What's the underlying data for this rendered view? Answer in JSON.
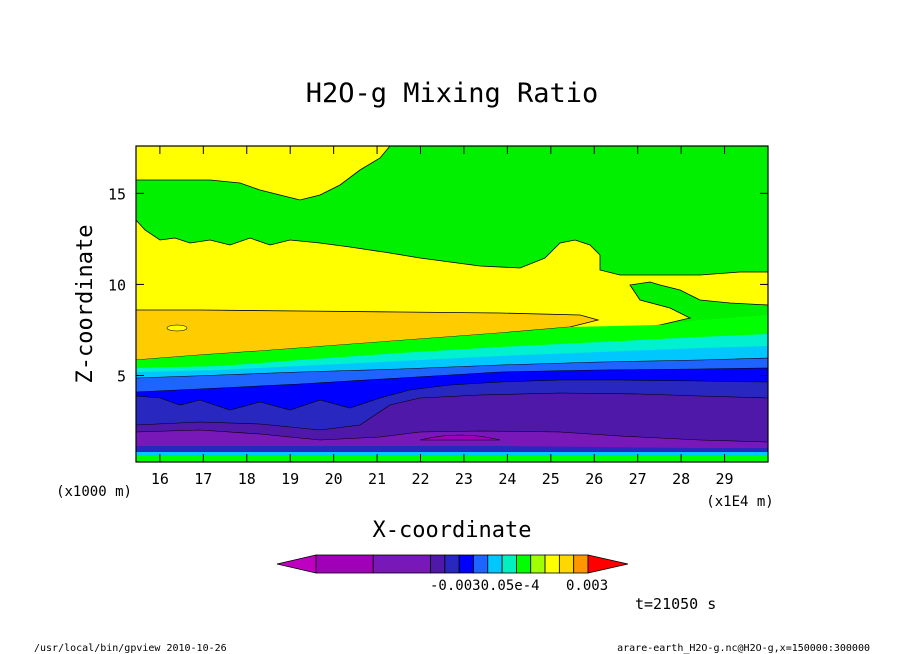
{
  "chart_data": {
    "type": "heatmap",
    "title": "H2O-g Mixing Ratio",
    "xlabel": "X-coordinate",
    "ylabel": "Z-coordinate",
    "x_unit_label": "(x1E4 m)",
    "y_unit_label": "(x1000 m)",
    "xlim": [
      15.45,
      30.0
    ],
    "ylim": [
      0.25,
      17.6
    ],
    "x_ticks": [
      "16",
      "17",
      "18",
      "19",
      "20",
      "21",
      "22",
      "23",
      "24",
      "25",
      "26",
      "27",
      "28",
      "29"
    ],
    "y_ticks": [
      "5",
      "10",
      "15"
    ],
    "colorbar": {
      "colors": [
        "#c000c0",
        "#a000b8",
        "#7818b8",
        "#5018a8",
        "#2828c0",
        "#0000ff",
        "#1e64ff",
        "#00c8ff",
        "#00f0c0",
        "#00ff00",
        "#a0ff00",
        "#ffff00",
        "#ffd700",
        "#ff9600",
        "#ff0000"
      ],
      "labels": [
        "-0.0030.05e-4",
        "0.003"
      ]
    },
    "time_label": "t=21050 s"
  },
  "footer": {
    "left": "/usr/local/bin/gpview  2010-10-26",
    "right": "arare-earth_H2O-g.nc@H2O-g,x=150000:300000"
  }
}
